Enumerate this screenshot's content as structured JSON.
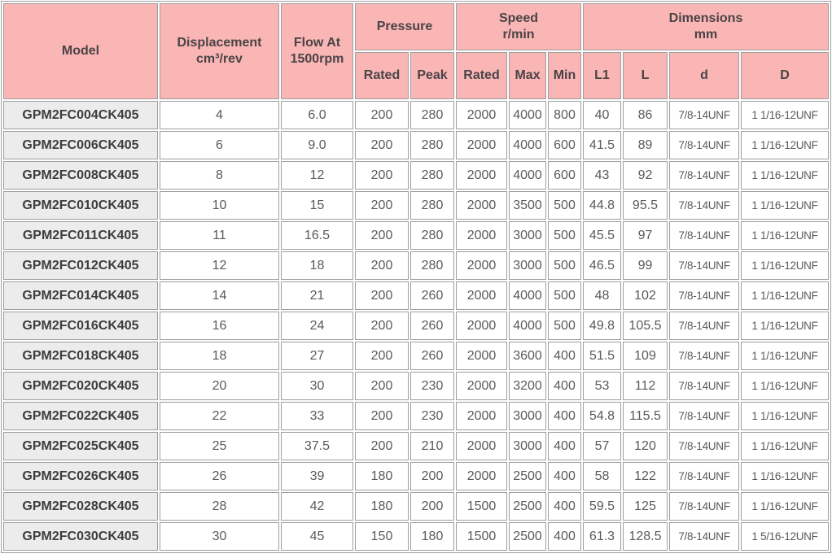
{
  "colors": {
    "header_bg": "#fab5b5",
    "model_col_bg": "#ececec",
    "border": "#9e9e9e",
    "header_text": "#4a4446",
    "cell_text": "#5a5a5a"
  },
  "table": {
    "header": {
      "model": "Model",
      "displacement": "Displacement\ncm³/rev",
      "flow": "Flow At\n1500rpm",
      "pressure": "Pressure",
      "pressure_sub": [
        "Rated",
        "Peak"
      ],
      "speed": "Speed\nr/min",
      "speed_sub": [
        "Rated",
        "Max",
        "Min"
      ],
      "dimensions": "Dimensions\nmm",
      "dimensions_sub": [
        "L1",
        "L",
        "d",
        "D"
      ]
    },
    "rows": [
      [
        "GPM2FC004CK405",
        "4",
        "6.0",
        "200",
        "280",
        "2000",
        "4000",
        "800",
        "40",
        "86",
        "7/8-14UNF",
        "1 1/16-12UNF"
      ],
      [
        "GPM2FC006CK405",
        "6",
        "9.0",
        "200",
        "280",
        "2000",
        "4000",
        "600",
        "41.5",
        "89",
        "7/8-14UNF",
        "1 1/16-12UNF"
      ],
      [
        "GPM2FC008CK405",
        "8",
        "12",
        "200",
        "280",
        "2000",
        "4000",
        "600",
        "43",
        "92",
        "7/8-14UNF",
        "1 1/16-12UNF"
      ],
      [
        "GPM2FC010CK405",
        "10",
        "15",
        "200",
        "280",
        "2000",
        "3500",
        "500",
        "44.8",
        "95.5",
        "7/8-14UNF",
        "1 1/16-12UNF"
      ],
      [
        "GPM2FC011CK405",
        "11",
        "16.5",
        "200",
        "280",
        "2000",
        "3000",
        "500",
        "45.5",
        "97",
        "7/8-14UNF",
        "1 1/16-12UNF"
      ],
      [
        "GPM2FC012CK405",
        "12",
        "18",
        "200",
        "280",
        "2000",
        "3000",
        "500",
        "46.5",
        "99",
        "7/8-14UNF",
        "1 1/16-12UNF"
      ],
      [
        "GPM2FC014CK405",
        "14",
        "21",
        "200",
        "260",
        "2000",
        "4000",
        "500",
        "48",
        "102",
        "7/8-14UNF",
        "1 1/16-12UNF"
      ],
      [
        "GPM2FC016CK405",
        "16",
        "24",
        "200",
        "260",
        "2000",
        "4000",
        "500",
        "49.8",
        "105.5",
        "7/8-14UNF",
        "1 1/16-12UNF"
      ],
      [
        "GPM2FC018CK405",
        "18",
        "27",
        "200",
        "260",
        "2000",
        "3600",
        "400",
        "51.5",
        "109",
        "7/8-14UNF",
        "1 1/16-12UNF"
      ],
      [
        "GPM2FC020CK405",
        "20",
        "30",
        "200",
        "230",
        "2000",
        "3200",
        "400",
        "53",
        "112",
        "7/8-14UNF",
        "1 1/16-12UNF"
      ],
      [
        "GPM2FC022CK405",
        "22",
        "33",
        "200",
        "230",
        "2000",
        "3000",
        "400",
        "54.8",
        "115.5",
        "7/8-14UNF",
        "1 1/16-12UNF"
      ],
      [
        "GPM2FC025CK405",
        "25",
        "37.5",
        "200",
        "210",
        "2000",
        "3000",
        "400",
        "57",
        "120",
        "7/8-14UNF",
        "1 1/16-12UNF"
      ],
      [
        "GPM2FC026CK405",
        "26",
        "39",
        "180",
        "200",
        "2000",
        "2500",
        "400",
        "58",
        "122",
        "7/8-14UNF",
        "1 1/16-12UNF"
      ],
      [
        "GPM2FC028CK405",
        "28",
        "42",
        "180",
        "200",
        "1500",
        "2500",
        "400",
        "59.5",
        "125",
        "7/8-14UNF",
        "1 1/16-12UNF"
      ],
      [
        "GPM2FC030CK405",
        "30",
        "45",
        "150",
        "180",
        "1500",
        "2500",
        "400",
        "61.3",
        "128.5",
        "7/8-14UNF",
        "1 5/16-12UNF"
      ]
    ]
  }
}
